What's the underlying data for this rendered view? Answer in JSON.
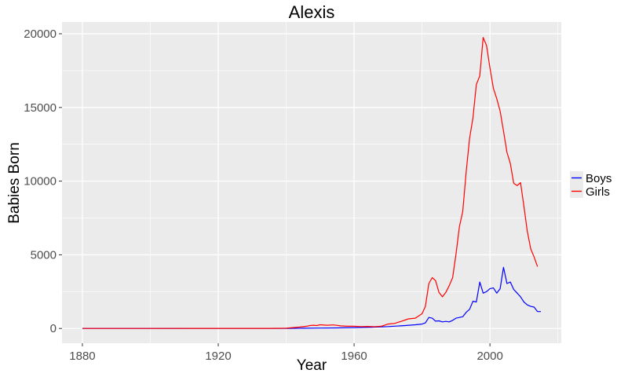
{
  "chart_data": {
    "type": "line",
    "title": "Alexis",
    "xlabel": "Year",
    "ylabel": "Babies Born",
    "xlim": [
      1874,
      2021
    ],
    "ylim": [
      -1000,
      20800
    ],
    "x_ticks": [
      1880,
      1920,
      1960,
      2000
    ],
    "y_ticks": [
      0,
      5000,
      10000,
      15000,
      20000
    ],
    "grid": true,
    "legend_position": "right",
    "colors": {
      "Boys": "#0000ff",
      "Girls": "#ff0000",
      "panel": "#ebebeb",
      "grid": "#ffffff"
    },
    "series": [
      {
        "name": "Boys",
        "color": "#0000ff",
        "points": [
          [
            1880,
            0
          ],
          [
            1900,
            0
          ],
          [
            1910,
            5
          ],
          [
            1920,
            10
          ],
          [
            1930,
            10
          ],
          [
            1940,
            10
          ],
          [
            1945,
            20
          ],
          [
            1950,
            30
          ],
          [
            1955,
            40
          ],
          [
            1960,
            60
          ],
          [
            1965,
            90
          ],
          [
            1970,
            130
          ],
          [
            1975,
            200
          ],
          [
            1978,
            250
          ],
          [
            1980,
            300
          ],
          [
            1981,
            380
          ],
          [
            1982,
            750
          ],
          [
            1983,
            700
          ],
          [
            1984,
            500
          ],
          [
            1985,
            520
          ],
          [
            1986,
            450
          ],
          [
            1987,
            480
          ],
          [
            1988,
            450
          ],
          [
            1989,
            550
          ],
          [
            1990,
            700
          ],
          [
            1991,
            750
          ],
          [
            1992,
            800
          ],
          [
            1993,
            1100
          ],
          [
            1994,
            1300
          ],
          [
            1995,
            1850
          ],
          [
            1996,
            1800
          ],
          [
            1997,
            3150
          ],
          [
            1998,
            2400
          ],
          [
            1999,
            2500
          ],
          [
            2000,
            2700
          ],
          [
            2001,
            2750
          ],
          [
            2002,
            2400
          ],
          [
            2003,
            2700
          ],
          [
            2004,
            4150
          ],
          [
            2005,
            3050
          ],
          [
            2006,
            3150
          ],
          [
            2007,
            2650
          ],
          [
            2008,
            2400
          ],
          [
            2009,
            2150
          ],
          [
            2010,
            1800
          ],
          [
            2011,
            1600
          ],
          [
            2012,
            1500
          ],
          [
            2013,
            1450
          ],
          [
            2014,
            1150
          ],
          [
            2015,
            1150
          ]
        ]
      },
      {
        "name": "Girls",
        "color": "#ff0000",
        "points": [
          [
            1880,
            0
          ],
          [
            1900,
            0
          ],
          [
            1920,
            5
          ],
          [
            1935,
            10
          ],
          [
            1940,
            20
          ],
          [
            1942,
            60
          ],
          [
            1944,
            100
          ],
          [
            1946,
            150
          ],
          [
            1947,
            200
          ],
          [
            1948,
            220
          ],
          [
            1949,
            200
          ],
          [
            1950,
            250
          ],
          [
            1952,
            220
          ],
          [
            1954,
            240
          ],
          [
            1956,
            180
          ],
          [
            1958,
            150
          ],
          [
            1960,
            150
          ],
          [
            1962,
            130
          ],
          [
            1964,
            140
          ],
          [
            1966,
            120
          ],
          [
            1968,
            150
          ],
          [
            1970,
            300
          ],
          [
            1972,
            350
          ],
          [
            1974,
            500
          ],
          [
            1976,
            650
          ],
          [
            1978,
            700
          ],
          [
            1980,
            1000
          ],
          [
            1981,
            1500
          ],
          [
            1982,
            3050
          ],
          [
            1983,
            3450
          ],
          [
            1984,
            3250
          ],
          [
            1985,
            2450
          ],
          [
            1986,
            2150
          ],
          [
            1987,
            2450
          ],
          [
            1988,
            2900
          ],
          [
            1989,
            3450
          ],
          [
            1990,
            5050
          ],
          [
            1991,
            6900
          ],
          [
            1992,
            7950
          ],
          [
            1993,
            10650
          ],
          [
            1994,
            12900
          ],
          [
            1995,
            14300
          ],
          [
            1996,
            16550
          ],
          [
            1997,
            17150
          ],
          [
            1998,
            19750
          ],
          [
            1999,
            19200
          ],
          [
            2000,
            17700
          ],
          [
            2001,
            16300
          ],
          [
            2002,
            15600
          ],
          [
            2003,
            14750
          ],
          [
            2004,
            13400
          ],
          [
            2005,
            11950
          ],
          [
            2006,
            11200
          ],
          [
            2007,
            9850
          ],
          [
            2008,
            9700
          ],
          [
            2009,
            9900
          ],
          [
            2010,
            8300
          ],
          [
            2011,
            6600
          ],
          [
            2012,
            5400
          ],
          [
            2013,
            4850
          ],
          [
            2014,
            4200
          ]
        ]
      }
    ]
  }
}
